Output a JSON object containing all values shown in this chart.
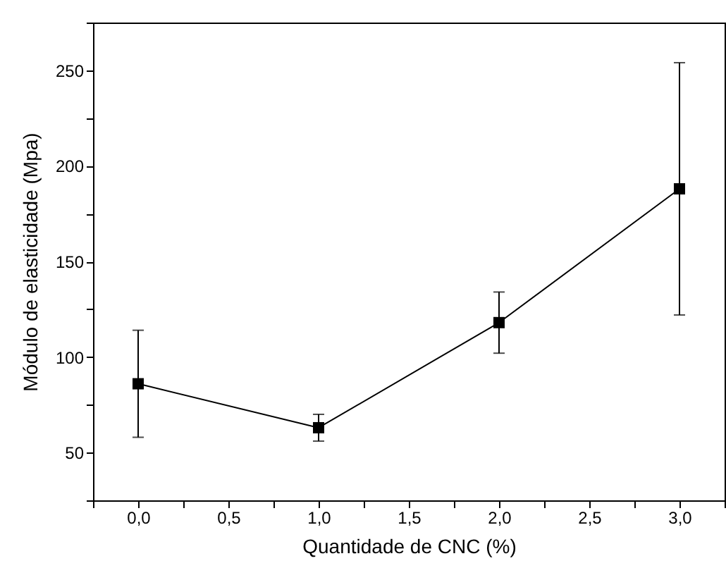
{
  "chart_data": {
    "type": "line",
    "xlabel": "Quantidade de CNC (%)",
    "ylabel": "Módulo de elasticidade (Mpa)",
    "x": [
      0,
      1,
      2,
      3
    ],
    "series": [
      {
        "color": "#000000",
        "values": [
          86,
          63,
          118,
          188
        ],
        "errors": [
          28,
          7,
          16,
          66
        ]
      }
    ],
    "xlim": [
      -0.25,
      3.25
    ],
    "xticks": [
      {
        "value": -0.25,
        "label": null
      },
      {
        "value": 0,
        "label": "0,0"
      },
      {
        "value": 0.25,
        "label": null
      },
      {
        "value": 0.5,
        "label": "0,5"
      },
      {
        "value": 0.75,
        "label": null
      },
      {
        "value": 1,
        "label": "1,0"
      },
      {
        "value": 1.25,
        "label": null
      },
      {
        "value": 1.5,
        "label": "1,5"
      },
      {
        "value": 1.75,
        "label": null
      },
      {
        "value": 2,
        "label": "2,0"
      },
      {
        "value": 2.25,
        "label": null
      },
      {
        "value": 2.5,
        "label": "2,5"
      },
      {
        "value": 2.75,
        "label": null
      },
      {
        "value": 3,
        "label": "3,0"
      },
      {
        "value": 3.25,
        "label": null
      }
    ],
    "ylim": [
      25,
      275
    ],
    "yticks": [
      {
        "value": 25,
        "label": null
      },
      50,
      {
        "value": 75,
        "label": null
      },
      100,
      {
        "value": 125,
        "label": null
      },
      150,
      {
        "value": 175,
        "label": null
      },
      200,
      {
        "value": 225,
        "label": null
      },
      250,
      {
        "value": 275,
        "label": null
      }
    ],
    "marker": "square",
    "line_style": "solid",
    "grid": false
  }
}
